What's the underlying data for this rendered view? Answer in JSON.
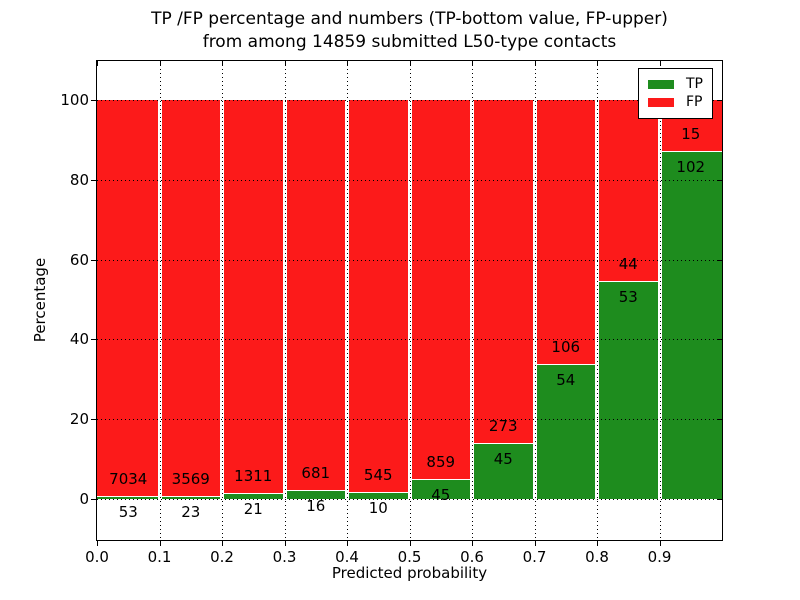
{
  "header": {
    "title_line1": "TP /FP percentage and numbers (TP-bottom value, FP-upper)",
    "title_line2": "from among 14859 submitted L50-type contacts"
  },
  "chart_data": {
    "type": "bar",
    "stacked": true,
    "title": "TP /FP percentage and numbers (TP-bottom value, FP-upper) from among 14859 submitted L50-type contacts",
    "xlabel": "Predicted probability",
    "ylabel": "Percentage",
    "total_submitted_contacts": 14859,
    "xlim": [
      0.0,
      1.0
    ],
    "ylim": [
      -10.3,
      109.8
    ],
    "yticks": [
      0,
      20,
      40,
      60,
      80,
      100
    ],
    "xtick_labels": [
      "0.0",
      "0.1",
      "0.2",
      "0.3",
      "0.4",
      "0.5",
      "0.6",
      "0.7",
      "0.8",
      "0.9"
    ],
    "grid": "dotted-black",
    "legend_position": "upper-right",
    "bar_unit": "percent of bin stacked to 100, labels show raw counts (TP bottom, FP upper)",
    "colors": {
      "tp": "#1e8c1e",
      "fp": "#fc1a1a",
      "grid": "#000000",
      "background": "#ffffff"
    },
    "legend": [
      {
        "label": "TP",
        "color": "#1e8c1e"
      },
      {
        "label": "FP",
        "color": "#fc1a1a"
      }
    ],
    "bins": [
      {
        "range": "0.0-0.1",
        "tp": 53,
        "fp": 7034
      },
      {
        "range": "0.1-0.2",
        "tp": 23,
        "fp": 3569
      },
      {
        "range": "0.2-0.3",
        "tp": 21,
        "fp": 1311
      },
      {
        "range": "0.3-0.4",
        "tp": 16,
        "fp": 681
      },
      {
        "range": "0.4-0.5",
        "tp": 10,
        "fp": 545
      },
      {
        "range": "0.5-0.6",
        "tp": 45,
        "fp": 859
      },
      {
        "range": "0.6-0.7",
        "tp": 45,
        "fp": 273
      },
      {
        "range": "0.7-0.8",
        "tp": 54,
        "fp": 106
      },
      {
        "range": "0.8-0.9",
        "tp": 53,
        "fp": 44
      },
      {
        "range": "0.9-1.0",
        "tp": 102,
        "fp": 15
      }
    ]
  }
}
